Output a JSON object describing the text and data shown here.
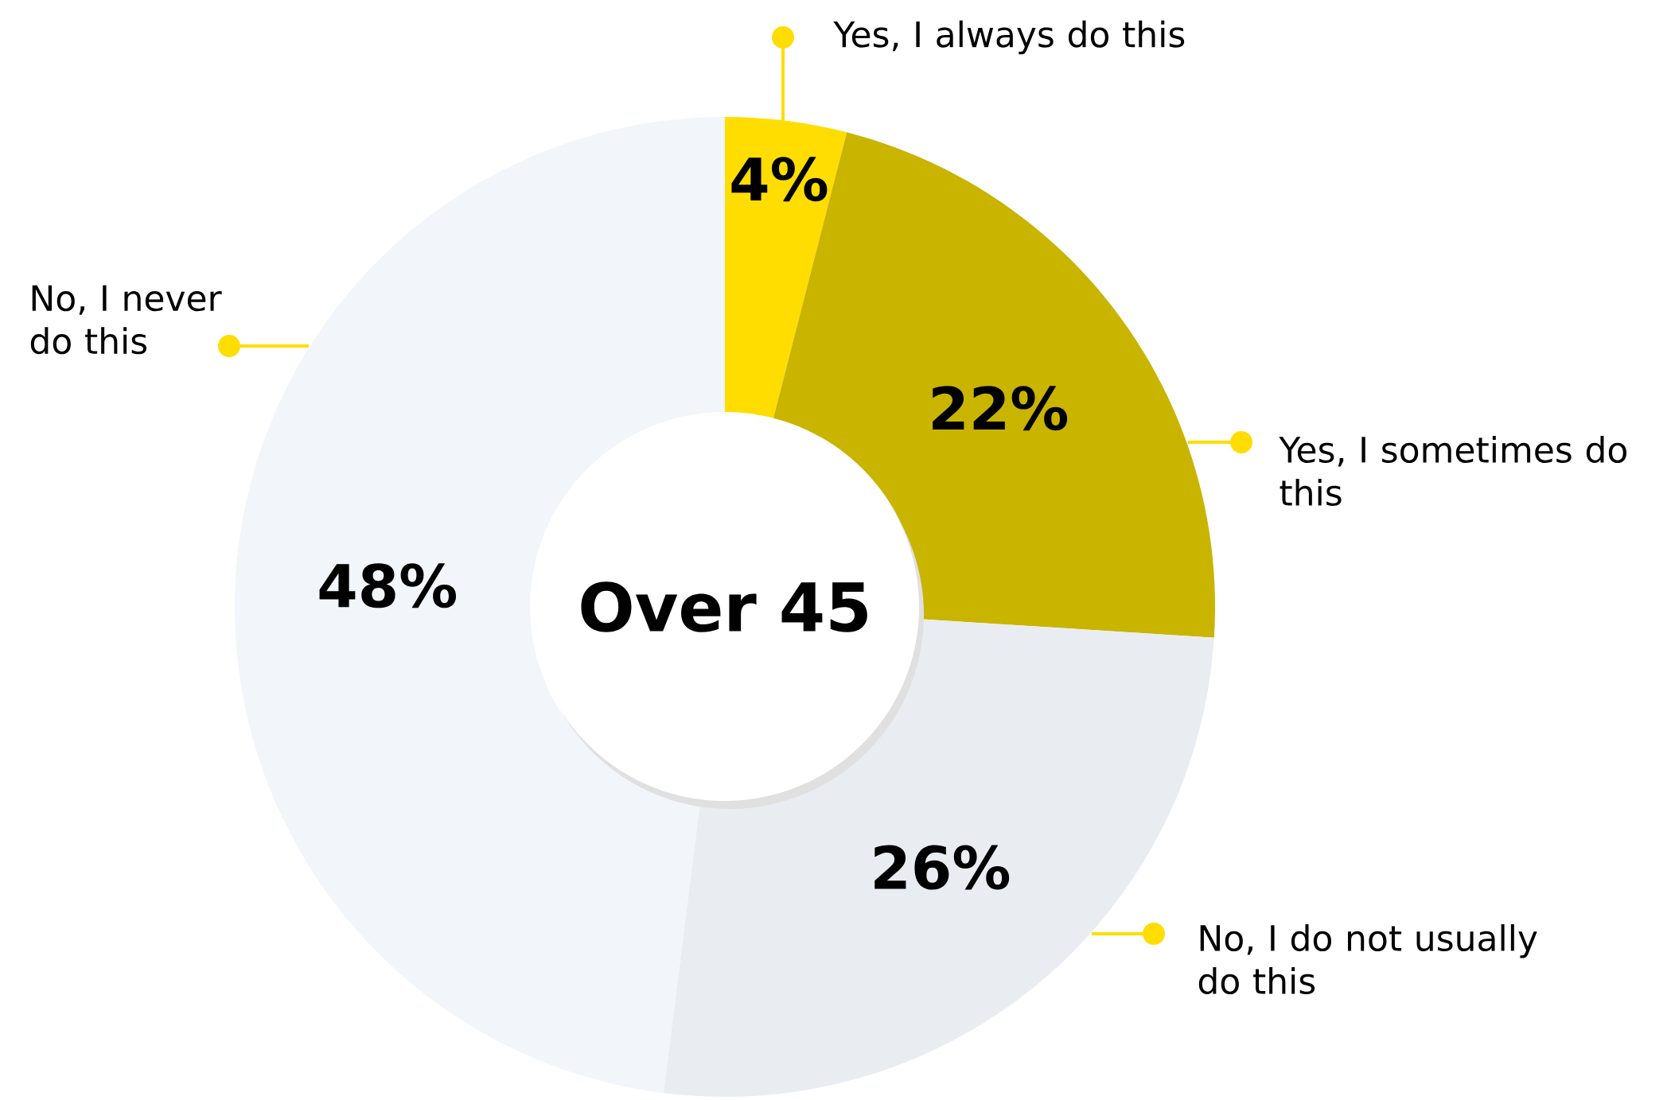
{
  "chart_data": {
    "type": "donut",
    "title": "Over 45",
    "categories": [
      "Yes, I always do this",
      "Yes, I sometimes do this",
      "No, I do not usually do this",
      "No, I never do this"
    ],
    "values": [
      4,
      22,
      26,
      48
    ],
    "colors": [
      "#ffdd00",
      "#c9b400",
      "#e9edf2",
      "#f2f5f9"
    ],
    "value_labels": [
      "4%",
      "22%",
      "26%",
      "48%"
    ]
  }
}
